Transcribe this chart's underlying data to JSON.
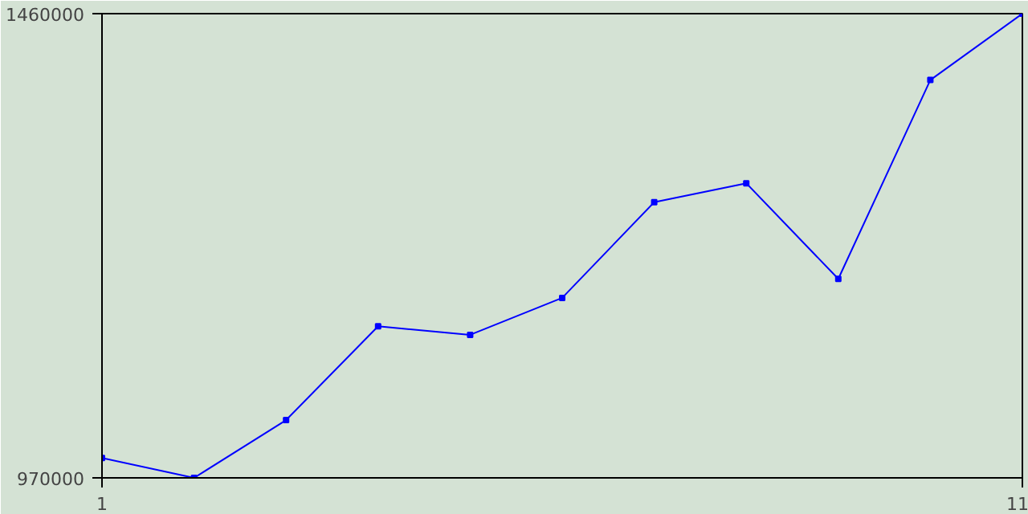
{
  "chart_data": {
    "type": "line",
    "x": [
      1,
      2,
      3,
      4,
      5,
      6,
      7,
      8,
      9,
      10,
      11
    ],
    "series": [
      {
        "color": "#0000ff",
        "values": [
          991000,
          970000,
          1031000,
          1130000,
          1121000,
          1160000,
          1261000,
          1281000,
          1180000,
          1390000,
          1460000
        ]
      }
    ],
    "xlim": [
      1,
      11
    ],
    "ylim": [
      970000,
      1460000
    ],
    "xticks": [
      1,
      11
    ],
    "yticks": [
      970000,
      1460000
    ],
    "marker": "square",
    "line_style": "solid"
  }
}
